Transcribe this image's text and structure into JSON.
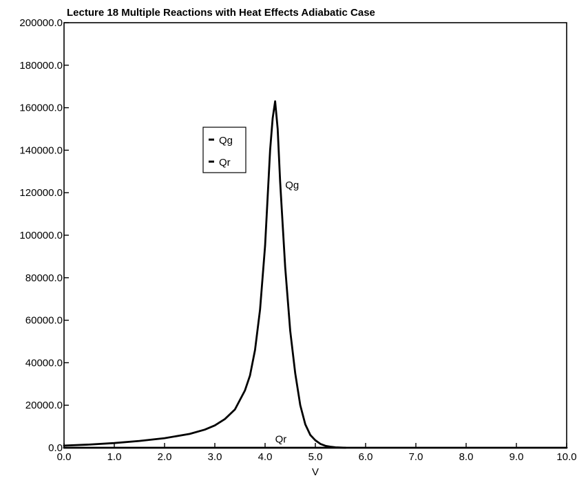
{
  "chart_data": {
    "type": "line",
    "title": "Lecture 18 Multiple Reactions with Heat Effects Adiabatic Case",
    "xlabel": "V",
    "ylabel": "",
    "xlim": [
      0.0,
      10.0
    ],
    "ylim": [
      0.0,
      200000.0
    ],
    "x_ticks": [
      "0.0",
      "1.0",
      "2.0",
      "3.0",
      "4.0",
      "5.0",
      "6.0",
      "7.0",
      "8.0",
      "9.0",
      "10.0"
    ],
    "y_ticks": [
      "0.0",
      "20000.0",
      "40000.0",
      "60000.0",
      "80000.0",
      "100000.0",
      "120000.0",
      "140000.0",
      "160000.0",
      "180000.0",
      "200000.0"
    ],
    "grid": false,
    "legend": {
      "placement": "upper-left-inside",
      "entries": [
        "Qg",
        "Qr"
      ]
    },
    "series": [
      {
        "name": "Qg",
        "x": [
          0.0,
          0.5,
          1.0,
          1.5,
          2.0,
          2.5,
          2.8,
          3.0,
          3.2,
          3.4,
          3.6,
          3.7,
          3.8,
          3.9,
          4.0,
          4.1,
          4.15,
          4.2,
          4.25,
          4.3,
          4.4,
          4.5,
          4.6,
          4.7,
          4.8,
          4.9,
          5.0,
          5.1,
          5.2,
          5.3,
          5.4,
          5.6
        ],
        "y": [
          1000,
          1500,
          2200,
          3200,
          4500,
          6500,
          8500,
          10500,
          13500,
          18000,
          27000,
          34000,
          46000,
          65000,
          95000,
          140000,
          155000,
          163000,
          150000,
          125000,
          85000,
          55000,
          35000,
          20000,
          11000,
          6000,
          3500,
          1800,
          900,
          500,
          200,
          0
        ]
      },
      {
        "name": "Qr",
        "x": [
          0.0,
          10.0
        ],
        "y": [
          0,
          0
        ]
      }
    ],
    "annotations": [
      {
        "text": "Qg",
        "x": 4.4,
        "y": 122000
      },
      {
        "text": "Qr",
        "x": 4.2,
        "y": 2500
      }
    ]
  }
}
